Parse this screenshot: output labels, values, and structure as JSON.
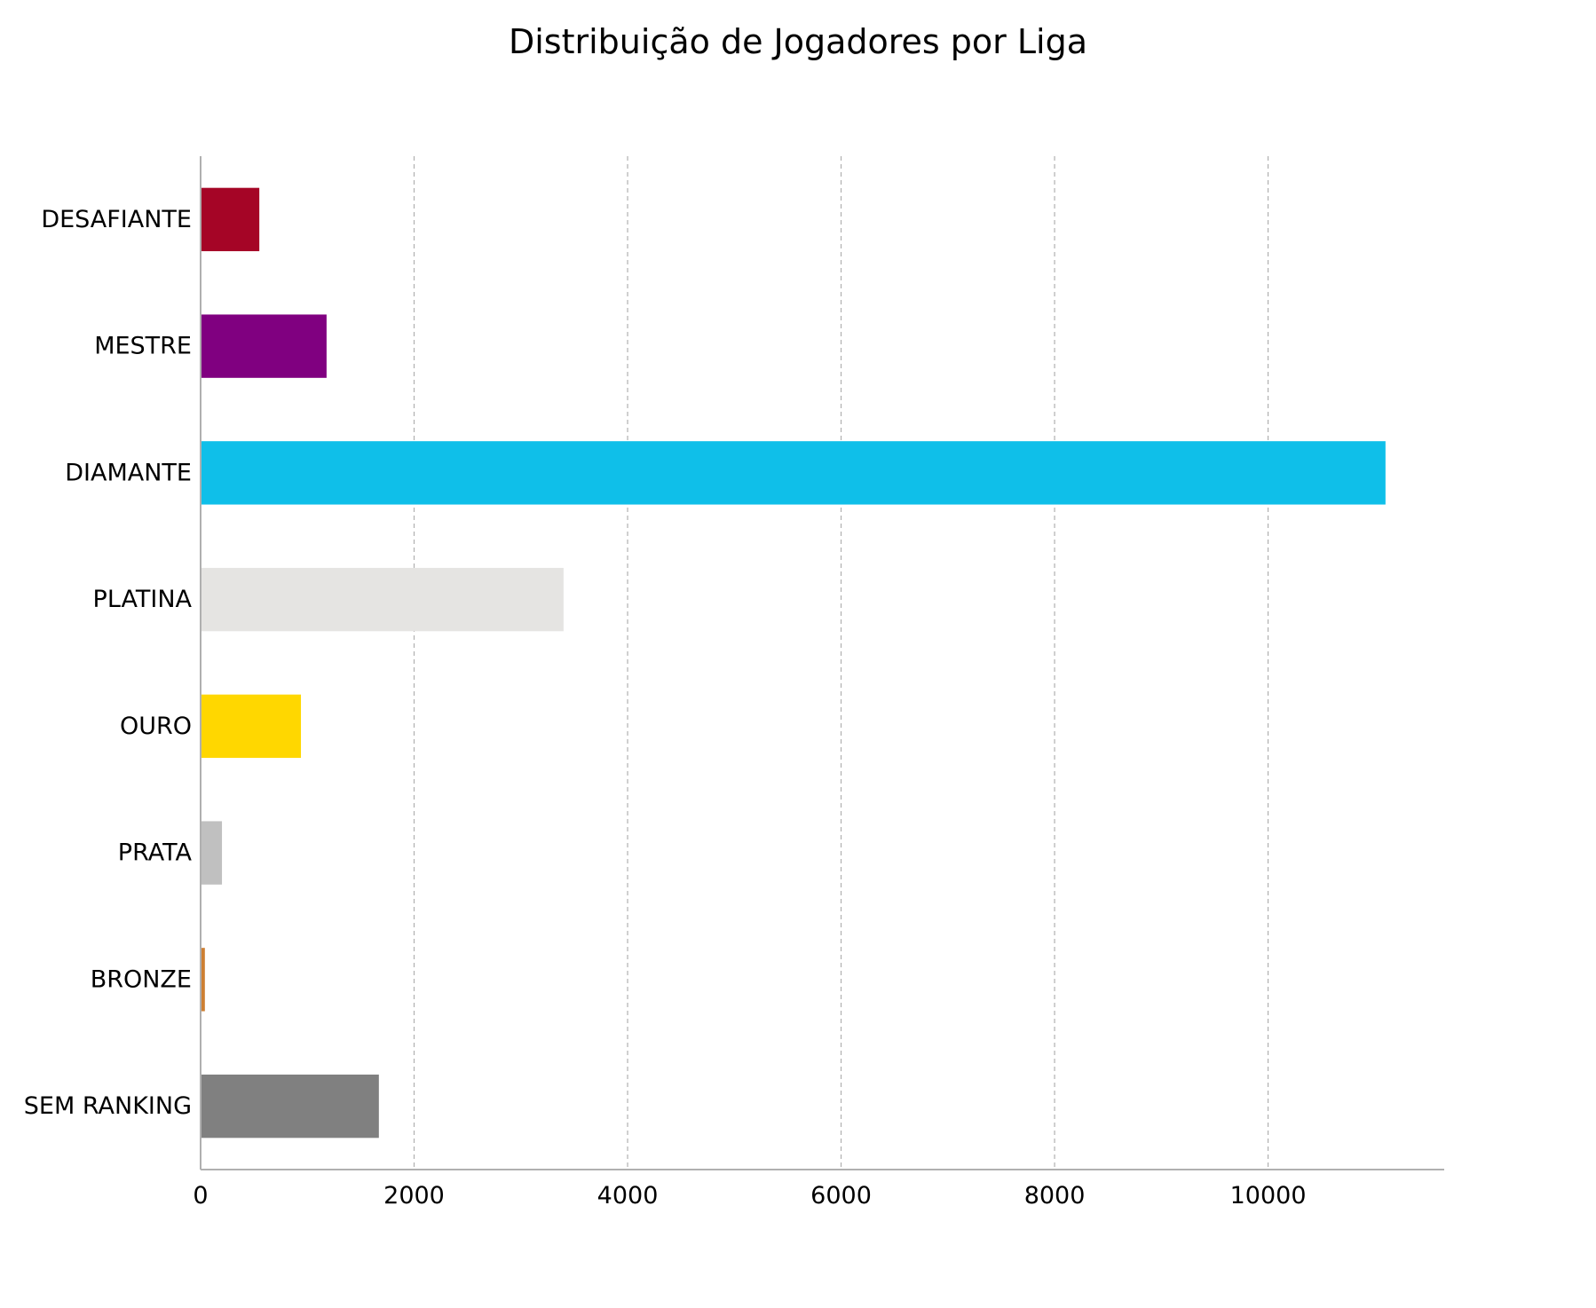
{
  "chart_data": {
    "type": "bar",
    "orientation": "horizontal",
    "title": "Distribuição de Jogadores por Liga",
    "xlabel": "",
    "ylabel": "",
    "xlim": [
      0,
      11650
    ],
    "xticks": [
      0,
      2000,
      4000,
      6000,
      8000,
      10000
    ],
    "grid": "x, dashed",
    "legend": "none",
    "categories": [
      "DESAFIANTE",
      "MESTRE",
      "DIAMANTE",
      "PLATINA",
      "OURO",
      "PRATA",
      "BRONZE",
      "SEM RANKING"
    ],
    "values": [
      550,
      1180,
      11100,
      3400,
      940,
      200,
      40,
      1670
    ],
    "colors": [
      "#a50526",
      "#800080",
      "#0fbfe9",
      "#e5e4e2",
      "#ffd700",
      "#c0c0c0",
      "#cd7f32",
      "#808080"
    ]
  }
}
